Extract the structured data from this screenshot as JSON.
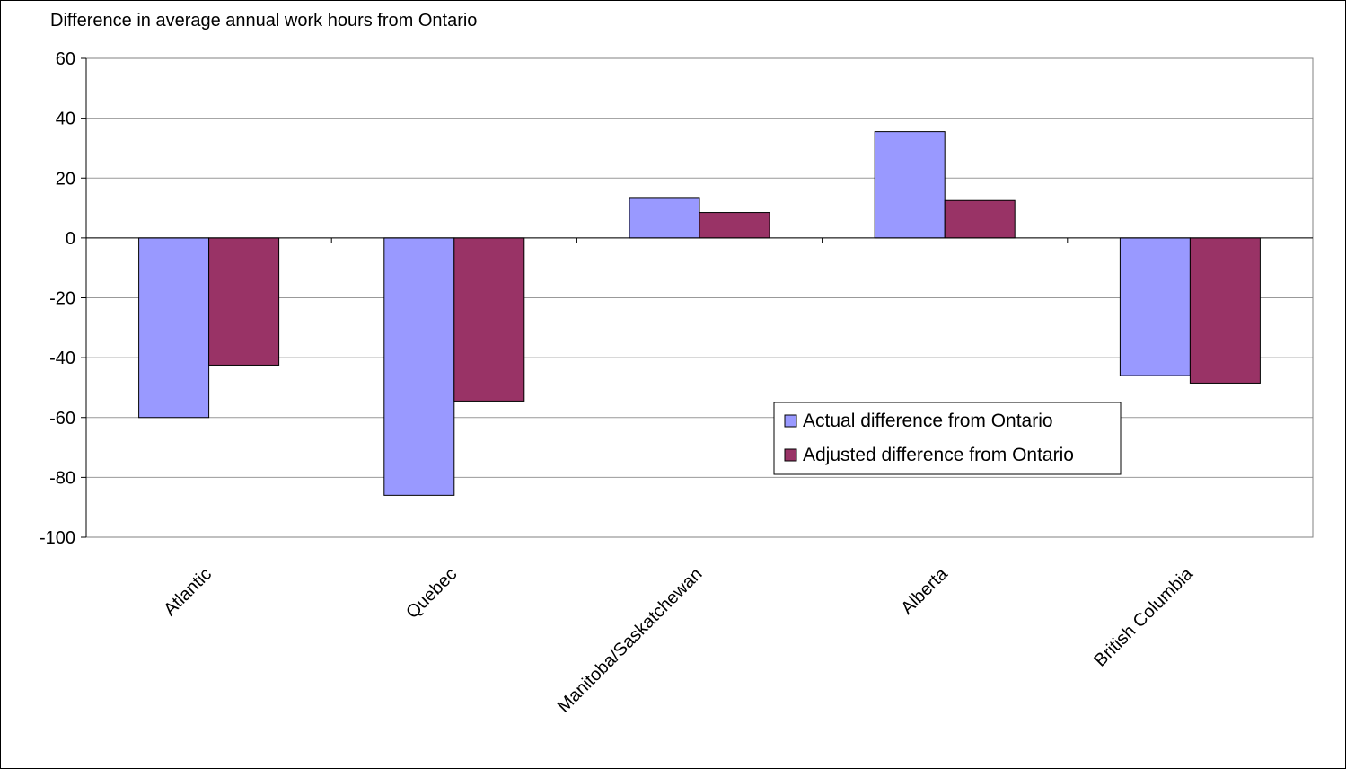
{
  "chart_data": {
    "type": "bar",
    "title": "",
    "ylabel": "Difference in average annual work hours from Ontario",
    "xlabel": "",
    "ylim": [
      -100,
      60
    ],
    "yticks": [
      60,
      40,
      20,
      0,
      -20,
      -40,
      -60,
      -80,
      -100
    ],
    "categories": [
      "Atlantic",
      "Quebec",
      "Manitoba/Saskatchewan",
      "Alberta",
      "British Columbia"
    ],
    "series": [
      {
        "name": "Actual difference from Ontario",
        "color": "#9999ff",
        "values": [
          -60,
          -86,
          13.5,
          35.5,
          -46
        ]
      },
      {
        "name": "Adjusted difference from Ontario",
        "color": "#993366",
        "values": [
          -42.5,
          -54.5,
          8.5,
          12.5,
          -48.5
        ]
      }
    ],
    "grid": true,
    "legend_position": "inside-right"
  }
}
